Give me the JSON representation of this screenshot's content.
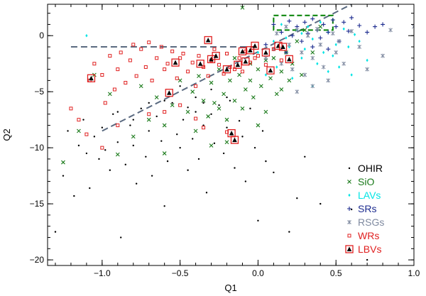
{
  "chart_data": {
    "type": "scatter",
    "title": "",
    "xlabel": "Q1",
    "ylabel": "Q2",
    "xlim": [
      -1.35,
      1.0
    ],
    "ylim": [
      -20.5,
      2.8
    ],
    "x_ticks": [
      -1.0,
      -0.5,
      0.0,
      0.5,
      1.0
    ],
    "x_tick_labels": [
      "−1.0",
      "−0.5",
      "0.0",
      "0.5",
      "1.0"
    ],
    "y_ticks": [
      0,
      -5,
      -10,
      -15,
      -20
    ],
    "y_tick_labels": [
      "0",
      "−5",
      "−10",
      "−15",
      "−20"
    ],
    "grid": false,
    "legend_position": "bottom-right",
    "series": [
      {
        "name": "OHIR",
        "marker": "dot",
        "color": "#000000",
        "points": [
          [
            -1.3,
            -17.5
          ],
          [
            -1.25,
            -12.5
          ],
          [
            -1.22,
            -8.5
          ],
          [
            -1.18,
            -14.3
          ],
          [
            -1.15,
            -9.8
          ],
          [
            -1.12,
            -7.5
          ],
          [
            -1.1,
            -10.5
          ],
          [
            -1.08,
            -13.6
          ],
          [
            -1.05,
            -9.0
          ],
          [
            -1.02,
            -11.0
          ],
          [
            -1.0,
            -8.2
          ],
          [
            -0.98,
            -10.2
          ],
          [
            -0.95,
            -12.0
          ],
          [
            -0.93,
            -7.0
          ],
          [
            -0.9,
            -9.5
          ],
          [
            -0.88,
            -18.0
          ],
          [
            -0.85,
            -11.5
          ],
          [
            -0.82,
            -8.0
          ],
          [
            -0.8,
            -9.8
          ],
          [
            -0.78,
            -13.2
          ],
          [
            -0.75,
            -6.5
          ],
          [
            -0.72,
            -10.8
          ],
          [
            -0.7,
            -8.5
          ],
          [
            -0.68,
            -12.5
          ],
          [
            -0.65,
            -7.2
          ],
          [
            -0.62,
            -9.4
          ],
          [
            -0.6,
            -15.2
          ],
          [
            -0.58,
            -11.2
          ],
          [
            -0.55,
            -6.0
          ],
          [
            -0.52,
            -8.8
          ],
          [
            -0.5,
            -10.0
          ],
          [
            -0.48,
            -7.5
          ],
          [
            -0.45,
            -12.0
          ],
          [
            -0.42,
            -9.2
          ],
          [
            -0.4,
            -6.8
          ],
          [
            -0.38,
            -11.0
          ],
          [
            -0.35,
            -8.0
          ],
          [
            -0.33,
            -14.0
          ],
          [
            -0.3,
            -7.0
          ],
          [
            -0.28,
            -9.6
          ],
          [
            -0.25,
            -6.2
          ],
          [
            -0.22,
            -10.5
          ],
          [
            -0.2,
            -8.2
          ],
          [
            -0.18,
            -5.8
          ],
          [
            -0.15,
            -11.8
          ],
          [
            -0.12,
            -7.6
          ],
          [
            -0.1,
            -9.0
          ],
          [
            -0.08,
            -13.0
          ],
          [
            -0.05,
            -6.5
          ],
          [
            -0.02,
            -10.0
          ],
          [
            0.0,
            -16.5
          ],
          [
            0.03,
            -8.5
          ],
          [
            0.05,
            -11.2
          ],
          [
            0.1,
            -12.2
          ],
          [
            0.2,
            -17.5
          ],
          [
            0.25,
            -14.5
          ],
          [
            0.3,
            -10.8
          ],
          [
            0.4,
            -15.0
          ],
          [
            0.6,
            -15.5
          ],
          [
            0.7,
            -20.0
          ],
          [
            -0.5,
            -4.5
          ],
          [
            -0.4,
            -5.5
          ],
          [
            -0.3,
            -4.8
          ],
          [
            -0.2,
            -5.5
          ],
          [
            -0.6,
            -5.8
          ],
          [
            -0.7,
            -6.0
          ],
          [
            -0.8,
            -7.5
          ],
          [
            -0.9,
            -6.8
          ],
          [
            -0.35,
            -6.0
          ],
          [
            -0.45,
            -6.4
          ]
        ]
      },
      {
        "name": "SiO",
        "marker": "x",
        "color": "#1a7a1a",
        "points": [
          [
            -1.25,
            -11.3
          ],
          [
            -1.15,
            -8.5
          ],
          [
            -1.05,
            -3.5
          ],
          [
            -0.95,
            -5.2
          ],
          [
            -0.9,
            -10.6
          ],
          [
            -0.8,
            -9.0
          ],
          [
            -0.75,
            -4.5
          ],
          [
            -0.7,
            -7.5
          ],
          [
            -0.65,
            -5.5
          ],
          [
            -0.6,
            -8.0
          ],
          [
            -0.55,
            -6.2
          ],
          [
            -0.5,
            -4.0
          ],
          [
            -0.45,
            -6.8
          ],
          [
            -0.42,
            -5.0
          ],
          [
            -0.4,
            -8.5
          ],
          [
            -0.38,
            -3.6
          ],
          [
            -0.35,
            -5.8
          ],
          [
            -0.32,
            -7.2
          ],
          [
            -0.3,
            -4.2
          ],
          [
            -0.28,
            -6.0
          ],
          [
            -0.25,
            -3.0
          ],
          [
            -0.22,
            -5.2
          ],
          [
            -0.2,
            -7.5
          ],
          [
            -0.18,
            -4.0
          ],
          [
            -0.15,
            -5.8
          ],
          [
            -0.12,
            -3.5
          ],
          [
            -0.1,
            -6.5
          ],
          [
            -0.08,
            -4.8
          ],
          [
            -0.05,
            -2.5
          ],
          [
            -0.03,
            -5.5
          ],
          [
            0.0,
            -3.0
          ],
          [
            0.02,
            -4.5
          ],
          [
            0.05,
            -6.8
          ],
          [
            0.08,
            -3.8
          ],
          [
            0.1,
            -2.0
          ],
          [
            0.12,
            -5.2
          ],
          [
            0.15,
            -3.2
          ],
          [
            0.18,
            -1.5
          ],
          [
            0.2,
            -4.0
          ],
          [
            0.22,
            -2.5
          ],
          [
            0.25,
            -0.5
          ],
          [
            0.28,
            -3.5
          ],
          [
            0.3,
            0.5
          ],
          [
            0.35,
            -1.5
          ],
          [
            0.4,
            0.8
          ],
          [
            -0.1,
            2.5
          ],
          [
            0.0,
            -8.0
          ],
          [
            -0.2,
            -9.5
          ],
          [
            -0.3,
            -9.8
          ],
          [
            -0.6,
            -10.5
          ],
          [
            -0.15,
            -2.0
          ],
          [
            -0.05,
            -4.0
          ],
          [
            0.05,
            -2.2
          ],
          [
            0.15,
            -4.8
          ],
          [
            -0.25,
            -6.5
          ]
        ]
      },
      {
        "name": "LAVs",
        "marker": "diamond",
        "color": "#00e5e5",
        "points": [
          [
            -1.1,
            0.0
          ],
          [
            0.1,
            -0.5
          ],
          [
            0.15,
            1.0
          ],
          [
            0.2,
            -1.0
          ],
          [
            0.25,
            0.5
          ],
          [
            0.28,
            -2.0
          ],
          [
            0.3,
            -1.2
          ],
          [
            0.32,
            0.8
          ],
          [
            0.35,
            -0.3
          ],
          [
            0.38,
            -2.5
          ],
          [
            0.4,
            1.2
          ],
          [
            0.42,
            -1.5
          ],
          [
            0.45,
            0.3
          ],
          [
            0.48,
            -1.8
          ],
          [
            0.5,
            -0.8
          ],
          [
            0.52,
            -2.8
          ],
          [
            0.55,
            0.6
          ],
          [
            0.58,
            -1.0
          ],
          [
            0.6,
            -3.5
          ],
          [
            0.65,
            -0.5
          ],
          [
            0.7,
            -2.2
          ],
          [
            0.05,
            -3.5
          ],
          [
            0.0,
            -1.5
          ],
          [
            0.12,
            -2.8
          ],
          [
            0.22,
            -3.8
          ],
          [
            0.35,
            -4.5
          ],
          [
            0.45,
            -3.2
          ],
          [
            0.28,
            0.2
          ],
          [
            0.18,
            -0.2
          ],
          [
            0.62,
            0.1
          ]
        ]
      },
      {
        "name": "SRs",
        "marker": "plus",
        "color": "#1c2b8f",
        "points": [
          [
            0.1,
            1.0
          ],
          [
            0.15,
            0.3
          ],
          [
            0.2,
            1.3
          ],
          [
            0.22,
            0.0
          ],
          [
            0.25,
            0.8
          ],
          [
            0.28,
            -0.5
          ],
          [
            0.3,
            1.2
          ],
          [
            0.32,
            0.2
          ],
          [
            0.35,
            1.5
          ],
          [
            0.38,
            0.5
          ],
          [
            0.4,
            -0.2
          ],
          [
            0.42,
            1.0
          ],
          [
            0.45,
            0.3
          ],
          [
            0.48,
            1.4
          ],
          [
            0.5,
            0.8
          ],
          [
            0.52,
            -0.5
          ],
          [
            0.55,
            1.2
          ],
          [
            0.58,
            0.4
          ],
          [
            0.6,
            1.6
          ],
          [
            0.65,
            0.9
          ],
          [
            0.7,
            0.3
          ],
          [
            0.75,
            0.8
          ],
          [
            0.8,
            1.0
          ],
          [
            0.05,
            -0.8
          ],
          [
            0.18,
            -1.5
          ],
          [
            0.35,
            -1.0
          ],
          [
            0.45,
            -1.2
          ]
        ]
      },
      {
        "name": "RSGs",
        "marker": "asterisk",
        "color": "#7f8aa0",
        "points": [
          [
            0.05,
            -2.0
          ],
          [
            0.1,
            -1.2
          ],
          [
            0.12,
            0.2
          ],
          [
            0.15,
            -2.5
          ],
          [
            0.18,
            0.8
          ],
          [
            0.2,
            -0.8
          ],
          [
            0.22,
            -3.0
          ],
          [
            0.25,
            0.5
          ],
          [
            0.28,
            -1.5
          ],
          [
            0.3,
            -3.5
          ],
          [
            0.32,
            0.0
          ],
          [
            0.35,
            -2.0
          ],
          [
            0.38,
            0.6
          ],
          [
            0.4,
            -0.8
          ],
          [
            0.42,
            -2.8
          ],
          [
            0.45,
            -4.0
          ],
          [
            0.48,
            0.2
          ],
          [
            0.5,
            -1.5
          ],
          [
            0.52,
            -0.5
          ],
          [
            0.55,
            -2.5
          ],
          [
            0.6,
            0.4
          ],
          [
            0.65,
            -1.0
          ],
          [
            0.7,
            -3.0
          ],
          [
            0.8,
            -1.8
          ],
          [
            0.85,
            0.5
          ],
          [
            1.0,
            0.8
          ],
          [
            0.25,
            -5.0
          ],
          [
            0.35,
            -4.5
          ]
        ]
      },
      {
        "name": "WRs",
        "marker": "open-square",
        "color": "#e02020",
        "points": [
          [
            -1.2,
            -6.5
          ],
          [
            -1.15,
            -7.5
          ],
          [
            -1.1,
            -8.8
          ],
          [
            -1.08,
            -4.0
          ],
          [
            -1.05,
            -2.5
          ],
          [
            -1.0,
            -3.5
          ],
          [
            -0.98,
            -6.0
          ],
          [
            -0.95,
            -1.8
          ],
          [
            -0.92,
            -4.8
          ],
          [
            -0.9,
            -3.0
          ],
          [
            -0.88,
            -1.5
          ],
          [
            -0.85,
            -4.2
          ],
          [
            -0.82,
            -2.2
          ],
          [
            -0.8,
            -0.8
          ],
          [
            -0.78,
            -3.6
          ],
          [
            -0.75,
            -1.2
          ],
          [
            -0.72,
            -2.8
          ],
          [
            -0.7,
            -0.6
          ],
          [
            -0.68,
            -4.0
          ],
          [
            -0.65,
            -2.0
          ],
          [
            -0.62,
            -1.0
          ],
          [
            -0.6,
            -3.0
          ],
          [
            -0.58,
            -2.5
          ],
          [
            -0.55,
            -1.4
          ],
          [
            -0.52,
            -3.8
          ],
          [
            -0.5,
            -2.0
          ],
          [
            -0.48,
            -1.6
          ],
          [
            -0.45,
            -3.2
          ],
          [
            -0.42,
            -2.4
          ],
          [
            -0.4,
            -4.5
          ],
          [
            -0.38,
            -1.8
          ],
          [
            -0.35,
            -2.8
          ],
          [
            -0.32,
            -3.6
          ],
          [
            -0.3,
            -2.2
          ],
          [
            -0.28,
            -1.2
          ],
          [
            -0.25,
            -2.6
          ],
          [
            -0.22,
            -3.4
          ],
          [
            -0.2,
            -1.6
          ],
          [
            -0.18,
            -2.8
          ],
          [
            -0.15,
            -3.0
          ],
          [
            -0.12,
            -2.0
          ],
          [
            -0.1,
            -3.2
          ],
          [
            -0.08,
            -1.4
          ],
          [
            -0.05,
            -2.4
          ],
          [
            -0.02,
            -2.0
          ],
          [
            0.0,
            -1.8
          ],
          [
            0.05,
            -2.6
          ],
          [
            0.1,
            -1.2
          ],
          [
            0.15,
            -2.2
          ],
          [
            -0.6,
            -6.8
          ],
          [
            -0.5,
            -6.2
          ],
          [
            -0.4,
            -7.4
          ],
          [
            -0.7,
            -7.0
          ],
          [
            -0.35,
            -8.2
          ],
          [
            -0.2,
            -8.6
          ],
          [
            -1.0,
            -10.0
          ],
          [
            -0.9,
            -8.0
          ]
        ]
      },
      {
        "name": "LBVs",
        "marker": "boxed-triangle",
        "color": "#e02020",
        "points": [
          [
            -1.07,
            -3.8
          ],
          [
            -0.57,
            -5.1
          ],
          [
            -0.53,
            -2.4
          ],
          [
            -0.37,
            -2.5
          ],
          [
            -0.32,
            -0.4
          ],
          [
            -0.3,
            -2.1
          ],
          [
            -0.27,
            -1.8
          ],
          [
            -0.2,
            -3.0
          ],
          [
            -0.17,
            -8.7
          ],
          [
            -0.15,
            -9.3
          ],
          [
            -0.13,
            -2.6
          ],
          [
            -0.1,
            -1.4
          ],
          [
            -0.08,
            -2.3
          ],
          [
            -0.05,
            -1.3
          ],
          [
            -0.02,
            -0.9
          ],
          [
            0.05,
            -1.5
          ],
          [
            0.08,
            -3.1
          ],
          [
            0.13,
            -0.9
          ],
          [
            0.16,
            -1.0
          ],
          [
            0.2,
            -2.1
          ]
        ]
      }
    ],
    "annotations": [
      {
        "type": "dashed-line",
        "color": "#5a6a80",
        "points": [
          [
            -1.2,
            -1.0
          ],
          [
            0.0,
            -1.0
          ]
        ]
      },
      {
        "type": "dashed-line",
        "color": "#5a6a80",
        "points": [
          [
            -1.0,
            -8.5
          ],
          [
            0.6,
            2.8
          ]
        ]
      },
      {
        "type": "dashed-box",
        "color": "#008000",
        "x": [
          0.1,
          0.48
        ],
        "y": [
          0.5,
          1.8
        ]
      }
    ]
  }
}
